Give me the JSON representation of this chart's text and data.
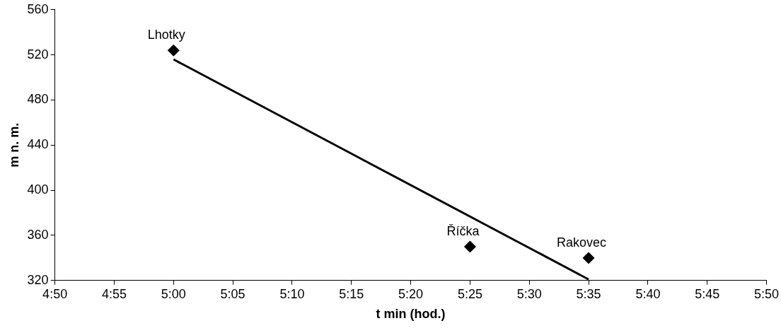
{
  "chart_data": {
    "type": "scatter",
    "xlabel": "t min (hod.)",
    "ylabel": "m n. m.",
    "series": [
      {
        "type": "scatter",
        "color": "#000000",
        "marker": "diamond",
        "x": [
          5.0,
          5.4167,
          5.5833
        ],
        "values": [
          524,
          350,
          340
        ]
      },
      {
        "type": "line",
        "color": "#000000",
        "marker": "none",
        "line_style": "solid",
        "x": [
          5.0,
          5.5833
        ],
        "values": [
          516,
          321
        ]
      }
    ],
    "xlim": [
      4.8333,
      5.8333
    ],
    "xticks": [
      {
        "value": 4.8333,
        "label": "4:50"
      },
      {
        "value": 4.9167,
        "label": "4:55"
      },
      {
        "value": 5.0,
        "label": "5:00"
      },
      {
        "value": 5.0833,
        "label": "5:05"
      },
      {
        "value": 5.1667,
        "label": "5:10"
      },
      {
        "value": 5.25,
        "label": "5:15"
      },
      {
        "value": 5.3333,
        "label": "5:20"
      },
      {
        "value": 5.4167,
        "label": "5:25"
      },
      {
        "value": 5.5,
        "label": "5:30"
      },
      {
        "value": 5.5833,
        "label": "5:35"
      },
      {
        "value": 5.6667,
        "label": "5:40"
      },
      {
        "value": 5.75,
        "label": "5:45"
      },
      {
        "value": 5.8333,
        "label": "5:50"
      }
    ],
    "ylim": [
      320,
      560
    ],
    "yticks": [
      320,
      360,
      400,
      440,
      480,
      520,
      560
    ],
    "grid": false,
    "legend": false,
    "annotations": [
      {
        "text": "Lhotky",
        "x": 5.0,
        "y": 524
      },
      {
        "text": "Říčka",
        "x": 5.4167,
        "y": 350
      },
      {
        "text": "Rakovec",
        "x": 5.5833,
        "y": 340
      }
    ]
  }
}
